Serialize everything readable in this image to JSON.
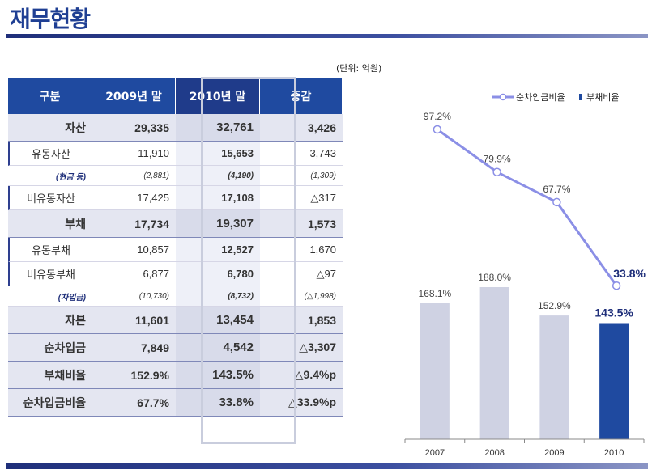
{
  "page_title": "재무현황",
  "unit_note": "(단위: 억원)",
  "table": {
    "headers": [
      "구분",
      "2009년 말",
      "2010년 말",
      "증감"
    ],
    "rows": [
      {
        "label": "자산",
        "v2009": "29,335",
        "v2010": "32,761",
        "diff": "3,426",
        "kind": "sec"
      },
      {
        "label": "유동자산",
        "v2009": "11,910",
        "v2010": "15,653",
        "diff": "3,743",
        "kind": "sub"
      },
      {
        "label": "(현금 등)",
        "v2009": "(2,881)",
        "v2010": "(4,190)",
        "diff": "(1,309)",
        "kind": "small"
      },
      {
        "label": "비유동자산",
        "v2009": "17,425",
        "v2010": "17,108",
        "diff": "△317",
        "kind": "sub"
      },
      {
        "label": "부채",
        "v2009": "17,734",
        "v2010": "19,307",
        "diff": "1,573",
        "kind": "sec"
      },
      {
        "label": "유동부채",
        "v2009": "10,857",
        "v2010": "12,527",
        "diff": "1,670",
        "kind": "sub"
      },
      {
        "label": "비유동부채",
        "v2009": "6,877",
        "v2010": "6,780",
        "diff": "△97",
        "kind": "sub"
      },
      {
        "label": "(차입금)",
        "v2009": "(10,730)",
        "v2010": "(8,732)",
        "diff": "(△1,998)",
        "kind": "small"
      },
      {
        "label": "자본",
        "v2009": "11,601",
        "v2010": "13,454",
        "diff": "1,853",
        "kind": "big"
      },
      {
        "label": "순차입금",
        "v2009": "7,849",
        "v2010": "4,542",
        "diff": "△3,307",
        "kind": "big"
      },
      {
        "label": "부채비율",
        "v2009": "152.9%",
        "v2010": "143.5%",
        "diff": "△9.4%p",
        "kind": "big"
      },
      {
        "label": "순차입금비율",
        "v2009": "67.7%",
        "v2010": "33.8%",
        "diff": "△33.9%p",
        "kind": "big"
      }
    ]
  },
  "chart_data": {
    "type": "bar",
    "categories": [
      "2007",
      "2008",
      "2009",
      "2010"
    ],
    "series": [
      {
        "name": "순차입금비율",
        "chart": "line",
        "values": [
          97.2,
          79.9,
          67.7,
          33.8
        ],
        "labels": [
          "97.2%",
          "79.9%",
          "67.7%",
          "33.8%"
        ],
        "color": "#8b8fe6"
      },
      {
        "name": "부채비율",
        "chart": "bar",
        "values": [
          168.1,
          188.0,
          152.9,
          143.5
        ],
        "labels": [
          "168.1%",
          "188.0%",
          "152.9%",
          "143.5%"
        ],
        "color": "#cfd2e3",
        "highlight_color": "#1f4aa0"
      }
    ],
    "legend_position": "top-right",
    "grid": false
  }
}
